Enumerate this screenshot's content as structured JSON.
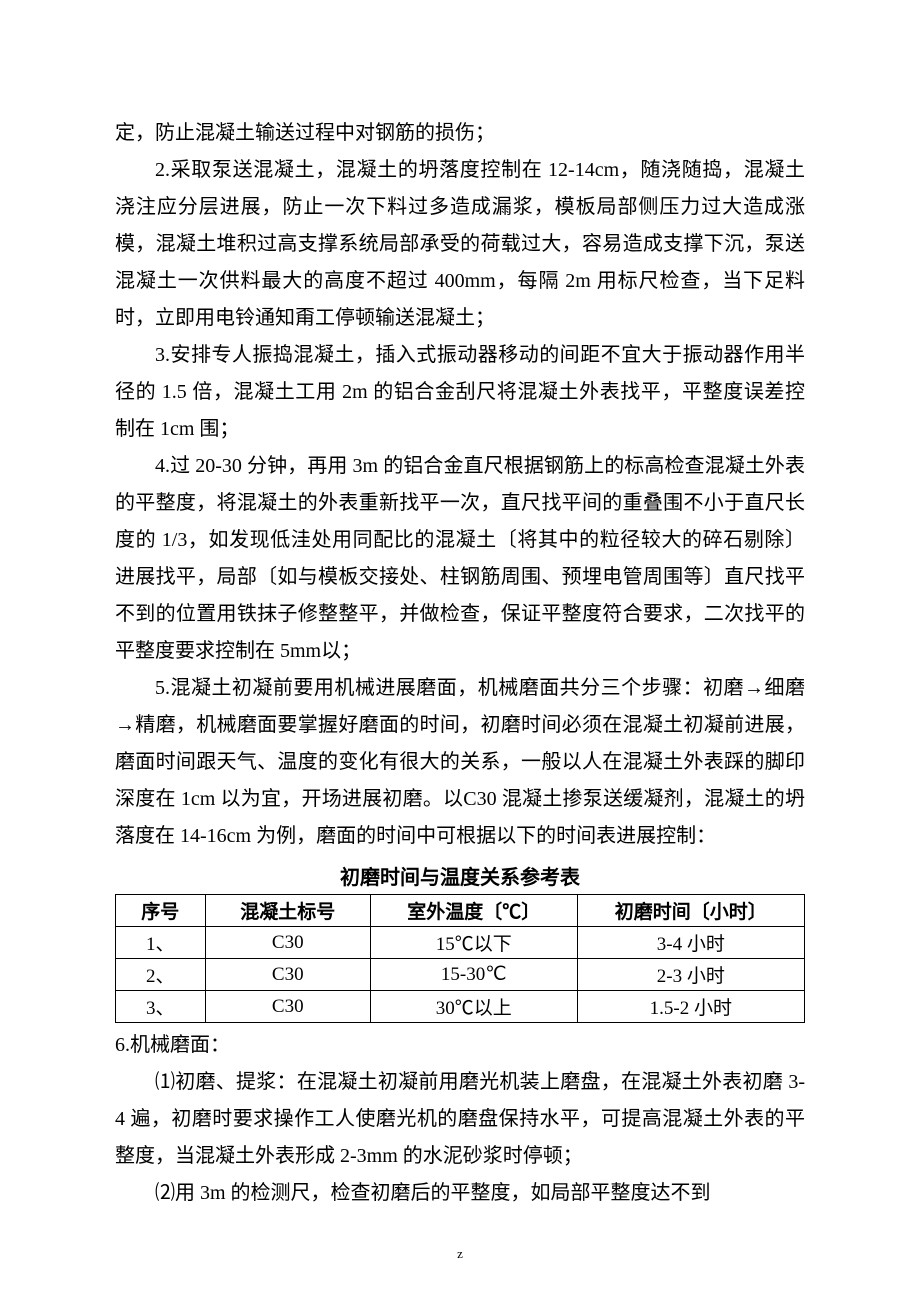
{
  "paragraphs": {
    "p1": "定，防止混凝土输送过程中对钢筋的损伤；",
    "p2": "2.采取泵送混凝土，混凝土的坍落度控制在 12-14cm，随浇随捣，混凝土浇注应分层进展，防止一次下料过多造成漏浆，模板局部侧压力过大造成涨模，混凝土堆积过高支撑系统局部承受的荷载过大，容易造成支撑下沉，泵送混凝土一次供料最大的高度不超过 400mm，每隔 2m 用标尺检查，当下足料时，立即用电铃通知甭工停顿输送混凝土；",
    "p3": "3.安排专人振捣混凝土，插入式振动器移动的间距不宜大于振动器作用半径的 1.5 倍，混凝土工用 2m 的铝合金刮尺将混凝土外表找平，平整度误差控制在 1cm 围；",
    "p4": "4.过 20-30 分钟，再用 3m 的铝合金直尺根据钢筋上的标高检查混凝土外表的平整度，将混凝土的外表重新找平一次，直尺找平间的重叠围不小于直尺长度的 1/3，如发现低洼处用同配比的混凝土〔将其中的粒径较大的碎石剔除〕进展找平，局部〔如与模板交接处、柱钢筋周围、预埋电管周围等〕直尺找平不到的位置用铁抹子修整整平，并做检查，保证平整度符合要求，二次找平的平整度要求控制在 5mm以；",
    "p5": "5.混凝土初凝前要用机械进展磨面，机械磨面共分三个步骤：初磨→细磨→精磨，机械磨面要掌握好磨面的时间，初磨时间必须在混凝土初凝前进展，磨面时间跟天气、温度的变化有很大的关系，一般以人在混凝土外表踩的脚印深度在 1cm 以为宜，开场进展初磨。以C30 混凝土掺泵送缓凝剂，混凝土的坍落度在 14-16cm 为例，磨面的时间中可根据以下的时间表进展控制：",
    "p6": "6.机械磨面：",
    "p7": "⑴初磨、提浆：在混凝土初凝前用磨光机装上磨盘，在混凝土外表初磨 3-4 遍，初磨时要求操作工人使磨光机的磨盘保持水平，可提高混凝土外表的平整度，当混凝土外表形成 2-3mm 的水泥砂浆时停顿；",
    "p8": "⑵用 3m 的检测尺，检查初磨后的平整度，如局部平整度达不到"
  },
  "table": {
    "title": "初磨时间与温度关系参考表",
    "headers": [
      "序号",
      "混凝土标号",
      "室外温度〔℃〕",
      "初磨时间〔小时〕"
    ],
    "rows": [
      [
        "1、",
        "C30",
        "15℃以下",
        "3-4 小时"
      ],
      [
        "2、",
        "C30",
        "15-30℃",
        "2-3 小时"
      ],
      [
        "3、",
        "C30",
        "30℃以上",
        "1.5-2 小时"
      ]
    ]
  },
  "footer": "z"
}
